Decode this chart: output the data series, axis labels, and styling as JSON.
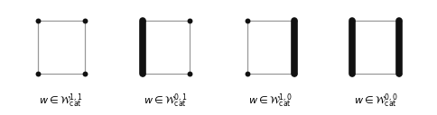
{
  "figures": [
    {
      "label": "$w \\in \\mathcal{W}_{\\mathrm{cat}}^{1,1}$",
      "top": true,
      "bottom": true,
      "left_thick": false,
      "right_thick": false
    },
    {
      "label": "$w \\in \\mathcal{W}_{\\mathrm{cat}}^{0,1}$",
      "top": true,
      "bottom": true,
      "left_thick": true,
      "right_thick": false
    },
    {
      "label": "$w \\in \\mathcal{W}_{\\mathrm{cat}}^{1,0}$",
      "top": true,
      "bottom": true,
      "left_thick": false,
      "right_thick": true
    },
    {
      "label": "$w \\in \\mathcal{W}_{\\mathrm{cat}}^{0,0}$",
      "top": true,
      "bottom": true,
      "left_thick": true,
      "right_thick": true
    }
  ],
  "thin_color": "#999999",
  "thick_color": "#111111",
  "dot_color": "#111111",
  "thin_lw": 0.9,
  "thick_lw": 5.5,
  "dot_size": 18,
  "background": "#ffffff",
  "label_fontsize": 8.0,
  "fig_width": 4.84,
  "fig_height": 1.28,
  "dpi": 100
}
